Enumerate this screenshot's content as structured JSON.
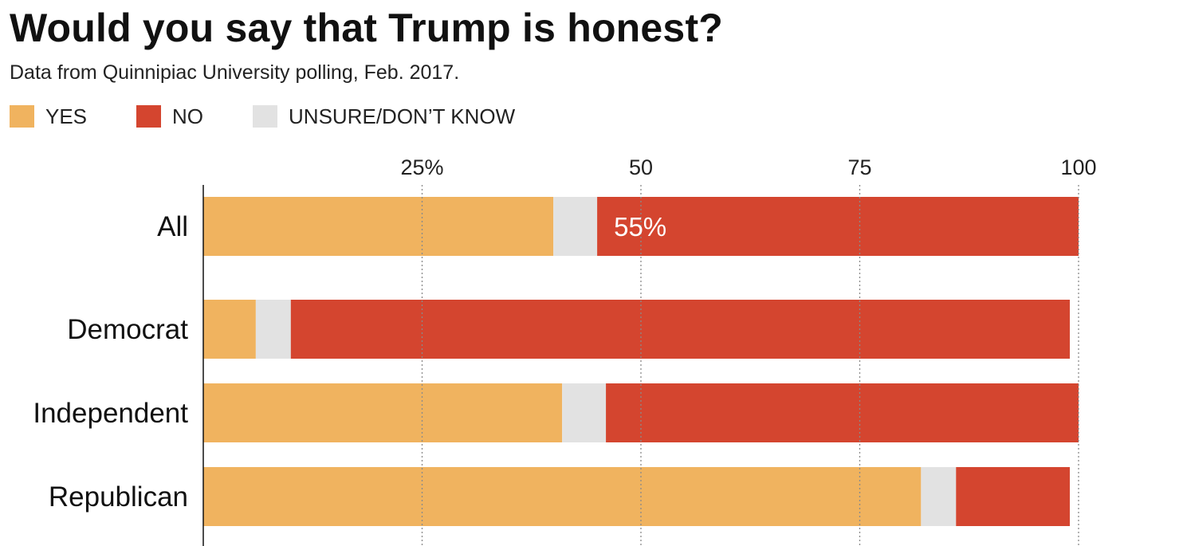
{
  "chart_data": {
    "type": "bar",
    "orientation": "horizontal",
    "stacked": true,
    "title": "Would you say that Trump is honest?",
    "subtitle": "Data from Quinnipiac University polling, Feb. 2017.",
    "categories": [
      "All",
      "Democrat",
      "Independent",
      "Republican"
    ],
    "series": [
      {
        "name": "YES",
        "color": "#f0b35f",
        "values": [
          40,
          6,
          41,
          82
        ]
      },
      {
        "name": "UNSURE/DON’T KNOW",
        "color": "#e2e2e2",
        "values": [
          5,
          4,
          5,
          4
        ]
      },
      {
        "name": "NO",
        "color": "#d4452f",
        "values": [
          55,
          89,
          54,
          13
        ]
      }
    ],
    "xlim": [
      0,
      100
    ],
    "xticks": [
      {
        "value": 25,
        "label": "25%"
      },
      {
        "value": 50,
        "label": "50"
      },
      {
        "value": 75,
        "label": "75"
      },
      {
        "value": 100,
        "label": "100"
      }
    ],
    "data_labels": [
      {
        "category": "All",
        "series": "NO",
        "text": "55%"
      }
    ],
    "grid": "vertical-dotted",
    "legend_position": "top-left"
  }
}
